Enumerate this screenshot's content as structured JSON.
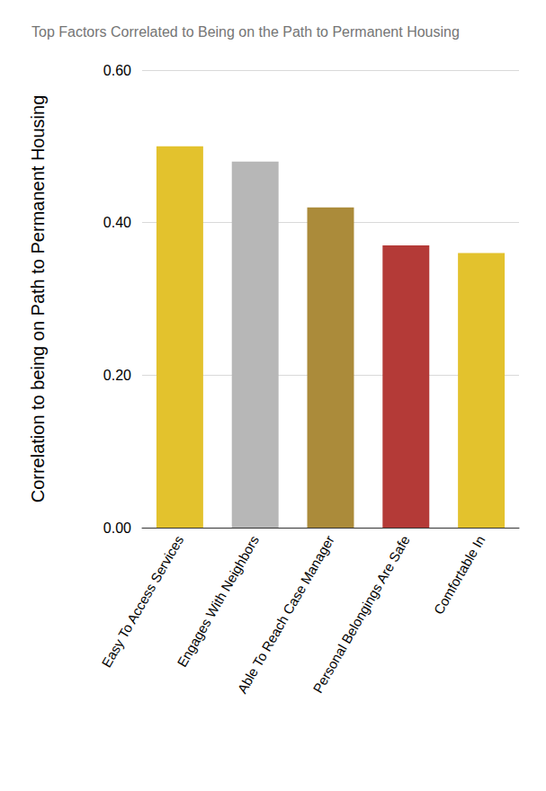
{
  "chart_data": {
    "type": "bar",
    "title": "Top Factors Correlated to Being on the Path to Permanent Housing",
    "y_label": "Correlation to being on Path to Permanent Housing",
    "categories": [
      "Easy To Access Services",
      "Engages With Neighbors",
      "Able To Reach Case Manager",
      "Personal Belongings Are Safe",
      "Comfortable In"
    ],
    "values": [
      0.5,
      0.48,
      0.42,
      0.37,
      0.36
    ],
    "colors": [
      "#e3c22d",
      "#b7b7b7",
      "#ab8b3a",
      "#b43a37",
      "#e3c22d"
    ],
    "ylim": [
      0,
      0.6
    ],
    "yticks": [
      {
        "value": 0,
        "label": "0.00"
      },
      {
        "value": 0.2,
        "label": "0.20"
      },
      {
        "value": 0.4,
        "label": "0.40"
      },
      {
        "value": 0.6,
        "label": "0.60"
      }
    ],
    "grid": true
  }
}
